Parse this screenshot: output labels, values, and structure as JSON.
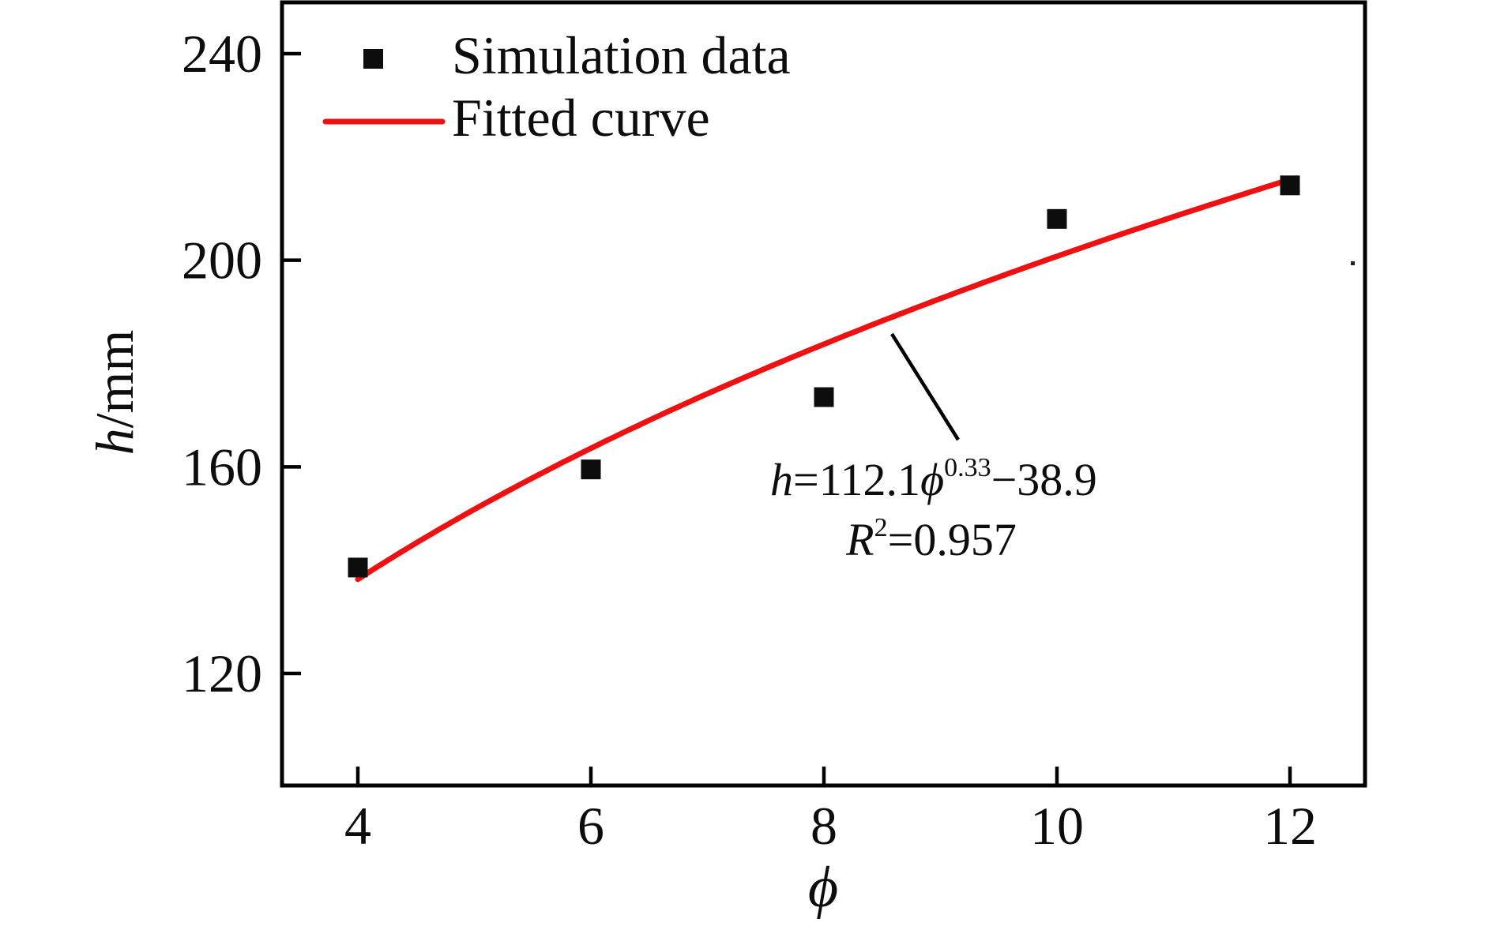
{
  "chart_data": {
    "type": "scatter",
    "title": "",
    "x": [
      4,
      6,
      8,
      10,
      12
    ],
    "series": [
      {
        "name": "Simulation data",
        "marker": "black-square",
        "values": [
          140.5,
          159.5,
          173.5,
          208,
          214.5
        ]
      }
    ],
    "fit": {
      "name": "Fitted curve",
      "type": "power",
      "equation": "h=112.1ϕ^0.33−38.9",
      "a": 112.1,
      "b": 0.33,
      "c": -38.9,
      "x_start": 4,
      "x_end": 12,
      "r_squared": 0.957
    },
    "xlabel": "ϕ",
    "ylabel": "h/mm",
    "x_ticks": [
      4,
      6,
      8,
      10,
      12
    ],
    "y_ticks": [
      120,
      160,
      200,
      240
    ],
    "xlim": [
      3.35,
      12.65
    ],
    "ylim": [
      98.3,
      249.9
    ],
    "grid": false,
    "legend_position": "top-left"
  },
  "legend": {
    "items": [
      {
        "label": "Simulation data",
        "swatch": "black-square-marker"
      },
      {
        "label": "Fitted curve",
        "swatch": "red-line"
      }
    ]
  },
  "axes": {
    "x_title": "ϕ",
    "y_title_italic": "h",
    "y_title_unit": "/mm",
    "x_tick_labels": [
      "4",
      "6",
      "8",
      "10",
      "12"
    ],
    "y_tick_labels": [
      "120",
      "160",
      "200",
      "240"
    ]
  },
  "annotation": {
    "eq_var": "h",
    "eq_coef": "=112.1",
    "eq_phi": "ϕ",
    "eq_exponent": "0.33",
    "eq_tail": "−38.9",
    "r_var": "R",
    "r_exponent": "2",
    "r_tail": "=0.957"
  },
  "colors": {
    "fit_line": "#ee1111",
    "marker": "#0d0d0d",
    "axis": "#000000",
    "background": "#ffffff"
  }
}
